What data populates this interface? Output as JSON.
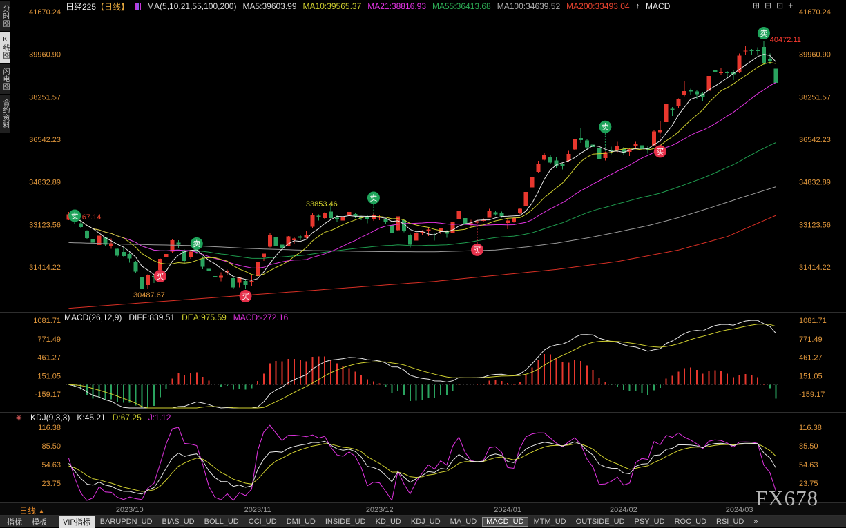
{
  "left_rail": {
    "items": [
      {
        "label": "分时图",
        "active": false
      },
      {
        "label": "K线图",
        "active": true
      },
      {
        "label": "闪电图",
        "active": false
      },
      {
        "label": "合约资料",
        "active": false
      }
    ]
  },
  "header": {
    "title_name": "日经225",
    "title_period": "【日线】",
    "ma_settings": "MA(5,10,21,55,100,200)",
    "ma_values": [
      {
        "label": "MA5:39603.99",
        "color": "#d8d8d8"
      },
      {
        "label": "MA10:39565.37",
        "color": "#cfcf2f"
      },
      {
        "label": "MA21:38816.93",
        "color": "#e233e2"
      },
      {
        "label": "MA55:36413.68",
        "color": "#2dad55"
      },
      {
        "label": "MA100:34639.52",
        "color": "#b0b0b0"
      },
      {
        "label": "MA200:33493.04",
        "color": "#e8432e"
      }
    ],
    "arrow_icon": "↑",
    "macd_label": "MACD",
    "window_icons": [
      "⊞",
      "⊟",
      "⊡",
      "+"
    ]
  },
  "panels": {
    "macd_header": {
      "name": "MACD(26,12,9)",
      "diff": "DIFF:839.51",
      "dea": "DEA:975.59",
      "macd": "MACD:-272.16"
    },
    "kdj_header": {
      "name": "KDJ(9,3,3)",
      "k": "K:45.21",
      "d": "D:67.25",
      "j": "J:1.12"
    },
    "dot_icon": "◉"
  },
  "axis": {
    "price_labels": [
      "41670.24",
      "39960.90",
      "38251.57",
      "36542.23",
      "34832.89",
      "33123.56",
      "31414.22"
    ],
    "macd_labels": [
      "1081.71",
      "771.49",
      "461.27",
      "151.05",
      "-159.17"
    ],
    "kdj_labels": [
      "116.38",
      "85.50",
      "54.63",
      "23.75"
    ],
    "period_label": "日线",
    "period_arrow": "▲"
  },
  "toolbar": {
    "left_tabs": [
      "指标",
      "模板"
    ],
    "indicator_tabs": [
      {
        "label": "VIP指标",
        "style": "sel-white"
      },
      {
        "label": "BARUPDN_UD"
      },
      {
        "label": "BIAS_UD"
      },
      {
        "label": "BOLL_UD"
      },
      {
        "label": "CCI_UD"
      },
      {
        "label": "DMI_UD"
      },
      {
        "label": "INSIDE_UD"
      },
      {
        "label": "KD_UD"
      },
      {
        "label": "KDJ_UD"
      },
      {
        "label": "MA_UD"
      },
      {
        "label": "MACD_UD",
        "style": "sel-box"
      },
      {
        "label": "MTM_UD"
      },
      {
        "label": "OUTSIDE_UD"
      },
      {
        "label": "PSY_UD"
      },
      {
        "label": "ROC_UD"
      },
      {
        "label": "RSI_UD"
      }
    ],
    "more_icon": "»"
  },
  "watermark": "FX678",
  "colors": {
    "up": "#e8372e",
    "down": "#2aa35f",
    "ma5": "#e8e8e8",
    "ma10": "#cfcf2f",
    "ma21": "#e233e2",
    "ma55": "#1f9d4f",
    "ma100": "#9a9a9a",
    "ma200": "#d93025",
    "axis_label": "#e0973c",
    "time_label": "#9a9a9a",
    "sell_marker": "#1ea35a",
    "buy_marker": "#e6304a",
    "diff_line": "#e8e8e8",
    "dea_line": "#cfcf2f",
    "k_line": "#e8e8e8",
    "d_line": "#cfcf2f",
    "j_line": "#e233e2"
  },
  "chart_data": {
    "type": "candlestick",
    "symbol": "日经225",
    "period": "日线",
    "price_ylim": [
      29700,
      41670.24
    ],
    "macd_params": "(26,12,9)",
    "macd_ylim": [
      -402,
      1186
    ],
    "kdj_params": "(9,3,3)",
    "kdj_ylim": [
      -6,
      138
    ],
    "time_labels": [
      {
        "label": "2023/10",
        "i": 10
      },
      {
        "label": "2023/11",
        "i": 31
      },
      {
        "label": "2023/12",
        "i": 51
      },
      {
        "label": "2024/01",
        "i": 72
      },
      {
        "label": "2024/02",
        "i": 91
      },
      {
        "label": "2024/03",
        "i": 110
      }
    ],
    "candles": [
      [
        33320,
        33634,
        33300,
        33533
      ],
      [
        33440,
        33466,
        33156,
        33242
      ],
      [
        33180,
        33337,
        32980,
        33023
      ],
      [
        32880,
        32900,
        32525,
        32571
      ],
      [
        32543,
        32620,
        32154,
        32402
      ],
      [
        32296,
        32707,
        32290,
        32678
      ],
      [
        32600,
        32612,
        32262,
        32315
      ],
      [
        32279,
        32558,
        32154,
        32372
      ],
      [
        32155,
        32181,
        31804,
        31872
      ],
      [
        32030,
        32202,
        31812,
        31858
      ],
      [
        31940,
        32015,
        31590,
        31760
      ],
      [
        31640,
        31660,
        31196,
        31238
      ],
      [
        31010,
        31070,
        30488,
        30527
      ],
      [
        30690,
        31130,
        30560,
        31075
      ],
      [
        31060,
        31100,
        30780,
        30995
      ],
      [
        31300,
        31766,
        31190,
        31746
      ],
      [
        31800,
        31990,
        31740,
        31936
      ],
      [
        32040,
        32533,
        31990,
        32494
      ],
      [
        32400,
        32500,
        32170,
        32316
      ],
      [
        32080,
        32120,
        31580,
        31659
      ],
      [
        31800,
        32110,
        31750,
        32040
      ],
      [
        32100,
        32260,
        31940,
        32042
      ],
      [
        31760,
        31850,
        31330,
        31430
      ],
      [
        31350,
        31466,
        31093,
        31259
      ],
      [
        31050,
        31310,
        30830,
        30999
      ],
      [
        30980,
        31200,
        30852,
        31062
      ],
      [
        31200,
        31322,
        31096,
        31270
      ],
      [
        30970,
        31010,
        30558,
        30601
      ],
      [
        30790,
        31030,
        30602,
        30992
      ],
      [
        30860,
        30940,
        30539,
        30697
      ],
      [
        30800,
        31080,
        30661,
        30859
      ],
      [
        31060,
        31610,
        31040,
        31602
      ],
      [
        31810,
        31960,
        31660,
        31950
      ],
      [
        32230,
        32770,
        32200,
        32708
      ],
      [
        32620,
        32680,
        32180,
        32272
      ],
      [
        32320,
        32460,
        32100,
        32166
      ],
      [
        32280,
        32660,
        32250,
        32646
      ],
      [
        32500,
        32620,
        32350,
        32568
      ],
      [
        32650,
        32720,
        32500,
        32586
      ],
      [
        32600,
        32850,
        32560,
        32696
      ],
      [
        33030,
        33570,
        32990,
        33520
      ],
      [
        33480,
        33540,
        33290,
        33424
      ],
      [
        33380,
        33620,
        33330,
        33585
      ],
      [
        33650,
        33853,
        33350,
        33388
      ],
      [
        33400,
        33500,
        33210,
        33354
      ],
      [
        33290,
        33480,
        33190,
        33452
      ],
      [
        33520,
        33680,
        33430,
        33626
      ],
      [
        33550,
        33610,
        33380,
        33448
      ],
      [
        33410,
        33480,
        33300,
        33408
      ],
      [
        33430,
        33500,
        33180,
        33321
      ],
      [
        33320,
        33560,
        33270,
        33487
      ],
      [
        33400,
        33500,
        33300,
        33432
      ],
      [
        33320,
        33350,
        33130,
        33231
      ],
      [
        33100,
        33120,
        32720,
        32776
      ],
      [
        32900,
        33450,
        32880,
        33446
      ],
      [
        33300,
        33330,
        32820,
        32858
      ],
      [
        32700,
        32760,
        32205,
        32308
      ],
      [
        32480,
        32810,
        32420,
        32792
      ],
      [
        32800,
        32900,
        32690,
        32843
      ],
      [
        32870,
        33000,
        32660,
        32926
      ],
      [
        32720,
        32770,
        32480,
        32686
      ],
      [
        32820,
        33000,
        32740,
        32971
      ],
      [
        32880,
        32900,
        32590,
        32759
      ],
      [
        32800,
        33230,
        32780,
        33219
      ],
      [
        33350,
        33824,
        33320,
        33676
      ],
      [
        33380,
        33440,
        33070,
        33140
      ],
      [
        33100,
        33310,
        33030,
        33170
      ],
      [
        33200,
        33312,
        33181,
        33254
      ],
      [
        33270,
        33380,
        33230,
        33306
      ],
      [
        33400,
        33755,
        33390,
        33681
      ],
      [
        33620,
        33680,
        33480,
        33540
      ],
      [
        33580,
        33640,
        33400,
        33464
      ],
      [
        33193,
        33320,
        32940,
        33288
      ],
      [
        33250,
        33430,
        33200,
        33378
      ],
      [
        33600,
        33790,
        33530,
        33763
      ],
      [
        33880,
        34450,
        33860,
        34442
      ],
      [
        34620,
        35160,
        34600,
        35050
      ],
      [
        35240,
        35680,
        35210,
        35577
      ],
      [
        35720,
        36010,
        35700,
        35901
      ],
      [
        35830,
        35920,
        35570,
        35619
      ],
      [
        35690,
        35840,
        35380,
        35478
      ],
      [
        35560,
        35600,
        35340,
        35466
      ],
      [
        35680,
        36080,
        35640,
        35963
      ],
      [
        36140,
        36570,
        36110,
        36547
      ],
      [
        36600,
        36984,
        36400,
        36517
      ],
      [
        36500,
        36560,
        36120,
        36226
      ],
      [
        36330,
        36390,
        36020,
        36236
      ],
      [
        36180,
        36220,
        35687,
        35751
      ],
      [
        35800,
        36060,
        35700,
        36026
      ],
      [
        36100,
        36250,
        35940,
        36065
      ],
      [
        36100,
        36440,
        36030,
        36287
      ],
      [
        36170,
        36240,
        35920,
        36011
      ],
      [
        36050,
        36210,
        35880,
        36158
      ],
      [
        36260,
        36440,
        36190,
        36354
      ],
      [
        36310,
        36400,
        36050,
        36160
      ],
      [
        36210,
        36280,
        35980,
        36119
      ],
      [
        36300,
        36900,
        36270,
        36863
      ],
      [
        36830,
        37280,
        36780,
        36897
      ],
      [
        37240,
        38010,
        37180,
        37963
      ],
      [
        37780,
        37850,
        37490,
        37703
      ],
      [
        37880,
        38190,
        37800,
        38157
      ],
      [
        38320,
        38865,
        38270,
        38487
      ],
      [
        38530,
        38580,
        38310,
        38470
      ],
      [
        38470,
        38540,
        38180,
        38363
      ],
      [
        38380,
        38450,
        38100,
        38262
      ],
      [
        38500,
        39156,
        38460,
        39098
      ],
      [
        39320,
        39388,
        39090,
        39233
      ],
      [
        39210,
        39426,
        39120,
        39239
      ],
      [
        39230,
        39280,
        39030,
        39208
      ],
      [
        39240,
        39330,
        38930,
        39166
      ],
      [
        39230,
        39990,
        39200,
        39910
      ],
      [
        40080,
        40314,
        39950,
        40109
      ],
      [
        40140,
        40180,
        39930,
        40097
      ],
      [
        40120,
        40237,
        39940,
        40090
      ],
      [
        40250,
        40472,
        39530,
        39598
      ],
      [
        39780,
        39989,
        39560,
        39688
      ],
      [
        39390,
        39420,
        38520,
        38820
      ]
    ],
    "ma100_anchors": [
      [
        0,
        32400
      ],
      [
        10,
        32330
      ],
      [
        20,
        32280
      ],
      [
        30,
        32160
      ],
      [
        40,
        32080
      ],
      [
        50,
        32040
      ],
      [
        60,
        32030
      ],
      [
        70,
        32100
      ],
      [
        75,
        32220
      ],
      [
        80,
        32380
      ],
      [
        85,
        32580
      ],
      [
        90,
        32820
      ],
      [
        95,
        33080
      ],
      [
        100,
        33400
      ],
      [
        105,
        33780
      ],
      [
        110,
        34180
      ],
      [
        116,
        34640
      ]
    ],
    "ma200_anchors": [
      [
        0,
        29760
      ],
      [
        20,
        30120
      ],
      [
        40,
        30480
      ],
      [
        60,
        30840
      ],
      [
        80,
        31320
      ],
      [
        90,
        31640
      ],
      [
        100,
        32100
      ],
      [
        108,
        32640
      ],
      [
        116,
        33493
      ]
    ],
    "signals": [
      {
        "i": 1,
        "price": 33480,
        "side": "sell",
        "glyph": "卖"
      },
      {
        "i": 15,
        "price": 31055,
        "side": "buy",
        "glyph": "买"
      },
      {
        "i": 21,
        "price": 32360,
        "side": "sell",
        "glyph": "卖"
      },
      {
        "i": 29,
        "price": 30250,
        "side": "buy",
        "glyph": "买"
      },
      {
        "i": 50,
        "price": 34200,
        "side": "sell",
        "glyph": "卖"
      },
      {
        "i": 67,
        "price": 32110,
        "side": "buy",
        "glyph": "买"
      },
      {
        "i": 88,
        "price": 37050,
        "side": "sell",
        "glyph": "卖"
      },
      {
        "i": 97,
        "price": 36060,
        "side": "buy",
        "glyph": "买"
      },
      {
        "i": 114,
        "price": 40810,
        "side": "sell",
        "glyph": "卖"
      }
    ],
    "annotations": [
      {
        "i": 2.2,
        "price": 33440,
        "text": "67.14",
        "color": "#e8432e"
      },
      {
        "i": 10.6,
        "price": 30300,
        "text": "30487.67",
        "color": "#e0973c"
      },
      {
        "i": 38.9,
        "price": 33960,
        "text": "33853.46",
        "color": "#d6d62e"
      },
      {
        "i": 115.0,
        "price": 40560,
        "text": "40472.11",
        "color": "#ff3b30"
      }
    ]
  }
}
